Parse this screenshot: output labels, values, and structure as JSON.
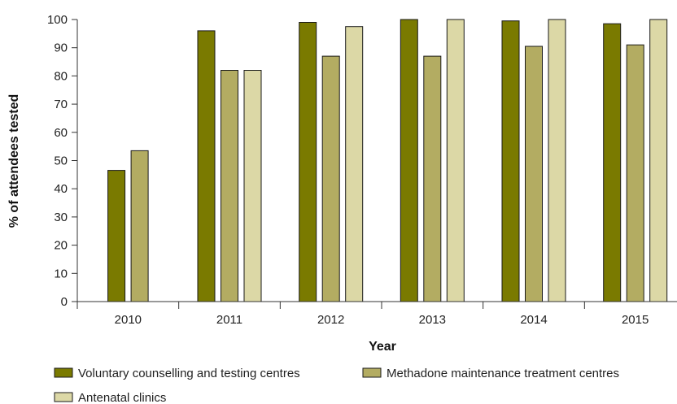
{
  "chart_data": {
    "type": "bar",
    "xlabel": "Year",
    "ylabel": "% of attendees tested",
    "categories": [
      "2010",
      "2011",
      "2012",
      "2013",
      "2014",
      "2015"
    ],
    "ylim": [
      0,
      100
    ],
    "yticks": [
      0,
      10,
      20,
      30,
      40,
      50,
      60,
      70,
      80,
      90,
      100
    ],
    "grid": false,
    "legend_position": "bottom",
    "series": [
      {
        "name": "Voluntary counselling and testing centres",
        "color": "#7a7a00",
        "values": [
          46.5,
          96,
          99,
          100,
          99.5,
          98.5
        ]
      },
      {
        "name": "Methadone maintenance treatment centres",
        "color": "#b3ac62",
        "values": [
          53.5,
          82,
          87,
          87,
          90.5,
          91
        ]
      },
      {
        "name": "Antenatal clinics",
        "color": "#dcd8a6",
        "values": [
          null,
          82,
          97.5,
          100,
          100,
          100
        ]
      }
    ]
  }
}
